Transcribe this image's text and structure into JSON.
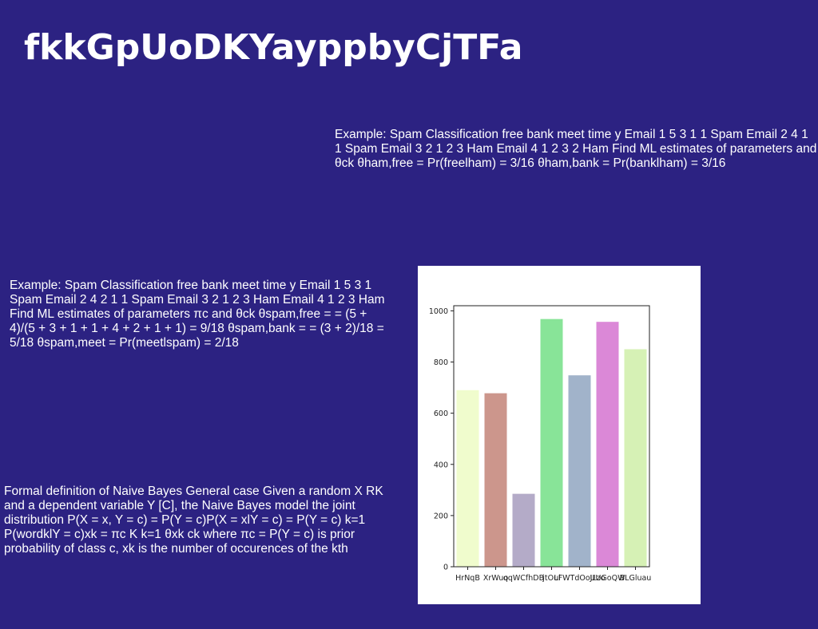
{
  "title": "fkkGpUoDKYayppbyCjTFa",
  "paragraphs": {
    "p1": "Example: Spam Classification free bank meet time y Email 1 5 3 1 1 Spam Email 2 4 1 1 Spam Email 3 2 1 2 3 Ham Email 4 1 2 3 2 Ham Find ML estimates of parameters and θck θham,free = Pr(freelham) = 3/16 θham,bank = Pr(banklham) = 3/16",
    "p2": "Example: Spam Classification free bank meet time y Email 1 5 3 1 Spam Email 2 4 2 1 1 Spam Email 3 2 1 2 3 Ham Email 4 1 2 3 Ham Find ML estimates of parameters πc and θck θspam,free = = (5 + 4)/(5 + 3 + 1 + 1 + 4 + 2 + 1 + 1) = 9/18 θspam,bank = = (3 + 2)/18 = 5/18 θspam,meet = Pr(meetlspam) = 2/18",
    "p3": "Formal definition of Naive Bayes General case Given a random X  RK and a dependent variable Y  [C], the Naive Bayes model the joint distribution P(X = x, Y = c) = P(Y = c)P(X = xlY = c) = P(Y = c)  k=1 P(wordklY = c)xk = πc K  k=1 θxk ck where πc = P(Y = c) is prior probability of class c, xk is the number of occurences of the kth"
  },
  "chart_data": {
    "type": "bar",
    "categories": [
      "HrNqB",
      "XrWuo",
      "qqWCfhDB",
      "jtOul",
      "LFWTdOoJLzo",
      "UUGoQW",
      "BLGluau"
    ],
    "values": [
      690,
      678,
      285,
      968,
      748,
      957,
      850
    ],
    "colors": [
      "#f0fccd",
      "#cc968c",
      "#b4abc8",
      "#88e498",
      "#a1b3ca",
      "#db88d7",
      "#d6f1b5"
    ],
    "ylim": [
      0,
      1020
    ],
    "yticks": [
      0,
      200,
      400,
      600,
      800,
      1000
    ],
    "title": "",
    "xlabel": "",
    "ylabel": "",
    "grid": false
  }
}
